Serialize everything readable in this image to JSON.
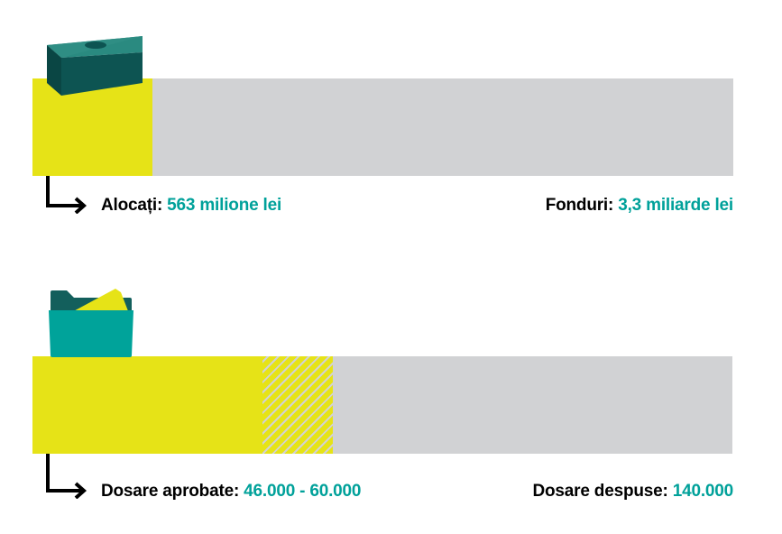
{
  "colors": {
    "filled": "#e6e317",
    "remaining": "#d1d2d4",
    "value_text": "#00a19a",
    "icon_dark": "#0d5452",
    "icon_teal": "#00a39a"
  },
  "chart_data": [
    {
      "type": "bar",
      "orientation": "horizontal",
      "stacked": true,
      "icon": "money-stack-icon",
      "total": 3.3,
      "filled": 0.563,
      "unit": "miliarde lei",
      "left_label": {
        "name": "Alocați:",
        "value": "563 milione lei"
      },
      "right_label": {
        "name": "Fonduri:",
        "value": "3,3 miliarde lei"
      }
    },
    {
      "type": "bar",
      "orientation": "horizontal",
      "stacked": true,
      "icon": "folder-documents-icon",
      "total": 140000,
      "filled": 46000,
      "range_max": 60000,
      "left_label": {
        "name": "Dosare aprobate:",
        "value": "46.000 - 60.000"
      },
      "right_label": {
        "name": "Dosare despuse:",
        "value": "140.000"
      }
    }
  ]
}
